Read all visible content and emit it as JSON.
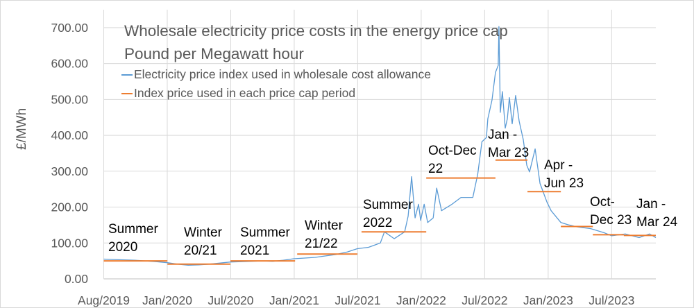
{
  "chart_data": {
    "type": "line",
    "title": "Wholesale electricity price costs in the energy price cap",
    "subtitle": "Pound per Megawatt hour",
    "xlabel": "",
    "ylabel": "£/MWh",
    "ylim": [
      0,
      750
    ],
    "xlim": [
      "2019-07-02",
      "2023-11-05"
    ],
    "y_ticks": [
      "0.00",
      "100.00",
      "200.00",
      "300.00",
      "400.00",
      "500.00",
      "600.00",
      "700.00"
    ],
    "x_tick_labels": [
      "Aug/2019",
      "Jan/2020",
      "Jul/2020",
      "Jan/2021",
      "Jul/2021",
      "Jan/2022",
      "Jul/2022",
      "Jan/2023",
      "Jul/2023"
    ],
    "grid": true,
    "legend_placement": "top-left",
    "colors": {
      "index": "#5B9BD5",
      "cap": "#ED7D31",
      "grid": "#D9D9D9"
    },
    "series": [
      {
        "name": "Electricity price index used in wholesale cost allowance",
        "points": [
          [
            "2019-07-02",
            55
          ],
          [
            "2019-07-31",
            54
          ],
          [
            "2019-08-30",
            53
          ],
          [
            "2019-09-29",
            52
          ],
          [
            "2019-10-29",
            50
          ],
          [
            "2019-11-30",
            48
          ],
          [
            "2020-01-01",
            45
          ],
          [
            "2020-01-31",
            41
          ],
          [
            "2020-03-01",
            38
          ],
          [
            "2020-03-31",
            39
          ],
          [
            "2020-04-30",
            41
          ],
          [
            "2020-06-01",
            44
          ],
          [
            "2020-06-30",
            47
          ],
          [
            "2020-07-30",
            48
          ],
          [
            "2020-08-29",
            49
          ],
          [
            "2020-09-30",
            50
          ],
          [
            "2020-10-30",
            49
          ],
          [
            "2020-11-29",
            52
          ],
          [
            "2020-12-29",
            56
          ],
          [
            "2021-01-30",
            58
          ],
          [
            "2021-03-01",
            60
          ],
          [
            "2021-03-31",
            64
          ],
          [
            "2021-04-30",
            68
          ],
          [
            "2021-06-01",
            75
          ],
          [
            "2021-06-30",
            84
          ],
          [
            "2021-08-01",
            88
          ],
          [
            "2021-08-21",
            95
          ],
          [
            "2021-09-04",
            100
          ],
          [
            "2021-09-16",
            131
          ],
          [
            "2021-10-14",
            112
          ],
          [
            "2021-11-13",
            131
          ],
          [
            "2021-11-23",
            175
          ],
          [
            "2021-12-03",
            285
          ],
          [
            "2021-12-13",
            170
          ],
          [
            "2021-12-23",
            208
          ],
          [
            "2021-12-29",
            163
          ],
          [
            "2022-01-08",
            208
          ],
          [
            "2022-01-18",
            157
          ],
          [
            "2022-02-03",
            170
          ],
          [
            "2022-02-13",
            253
          ],
          [
            "2022-02-27",
            190
          ],
          [
            "2022-03-29",
            208
          ],
          [
            "2022-04-24",
            227
          ],
          [
            "2022-05-28",
            227
          ],
          [
            "2022-06-11",
            292
          ],
          [
            "2022-06-23",
            382
          ],
          [
            "2022-07-06",
            394
          ],
          [
            "2022-07-10",
            446
          ],
          [
            "2022-07-22",
            498
          ],
          [
            "2022-08-01",
            575
          ],
          [
            "2022-08-09",
            595
          ],
          [
            "2022-08-11",
            703
          ],
          [
            "2022-08-15",
            464
          ],
          [
            "2022-08-21",
            522
          ],
          [
            "2022-08-29",
            420
          ],
          [
            "2022-09-04",
            446
          ],
          [
            "2022-09-10",
            505
          ],
          [
            "2022-09-18",
            432
          ],
          [
            "2022-09-28",
            511
          ],
          [
            "2022-10-08",
            440
          ],
          [
            "2022-10-20",
            388
          ],
          [
            "2022-10-30",
            317
          ],
          [
            "2022-11-07",
            298
          ],
          [
            "2022-11-23",
            362
          ],
          [
            "2022-12-07",
            266
          ],
          [
            "2022-12-27",
            214
          ],
          [
            "2023-01-08",
            190
          ],
          [
            "2023-02-05",
            157
          ],
          [
            "2023-02-25",
            151
          ],
          [
            "2023-03-23",
            145
          ],
          [
            "2023-05-02",
            140
          ],
          [
            "2023-06-11",
            128
          ],
          [
            "2023-07-01",
            120
          ],
          [
            "2023-08-09",
            125
          ],
          [
            "2023-09-18",
            115
          ],
          [
            "2023-10-18",
            125
          ],
          [
            "2023-11-05",
            115
          ]
        ]
      },
      {
        "name": "Index price used in each price cap period",
        "segments": [
          {
            "label": [
              "Summer",
              "2020"
            ],
            "start": "2019-07-02",
            "end": "2020-01-01",
            "value": 50
          },
          {
            "label": [
              "Winter",
              "20/21"
            ],
            "start": "2020-01-01",
            "end": "2020-06-30",
            "value": 41
          },
          {
            "label": [
              "Summer",
              "2021"
            ],
            "start": "2020-06-30",
            "end": "2021-01-02",
            "value": 50
          },
          {
            "label": [
              "Winter",
              "21/22"
            ],
            "start": "2021-01-08",
            "end": "2021-06-30",
            "value": 69
          },
          {
            "label": [
              "Summer",
              "2022"
            ],
            "start": "2021-07-12",
            "end": "2022-01-14",
            "value": 131
          },
          {
            "label": [
              "Oct-Dec",
              "22"
            ],
            "start": "2022-01-14",
            "end": "2022-08-01",
            "value": 281
          },
          {
            "label": [
              "Jan -",
              "Mar 23"
            ],
            "start": "2022-08-01",
            "end": "2022-11-01",
            "value": 331
          },
          {
            "label": [
              "Apr -",
              "Jun 23"
            ],
            "start": "2022-11-01",
            "end": "2023-02-05",
            "value": 243
          },
          {
            "label": [],
            "start": "2023-02-05",
            "end": "2023-05-08",
            "value": 146
          },
          {
            "label": [
              "Oct-",
              "Dec 23"
            ],
            "start": "2023-05-08",
            "end": "2023-08-05",
            "value": 123
          },
          {
            "label": [
              "Jan -",
              "Mar 24"
            ],
            "start": "2023-08-05",
            "end": "2023-11-05",
            "value": 121
          }
        ]
      }
    ]
  }
}
